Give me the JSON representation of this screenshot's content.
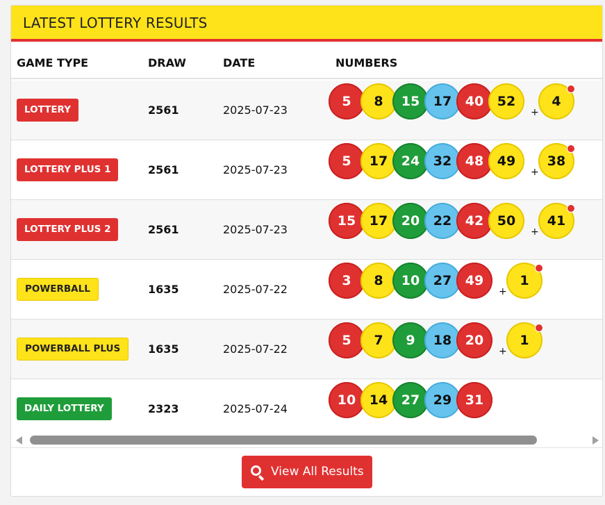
{
  "header": {
    "title": "LATEST LOTTERY RESULTS"
  },
  "columns": {
    "game": "GAME TYPE",
    "draw": "DRAW",
    "date": "DATE",
    "numbers": "NUMBERS"
  },
  "colors": {
    "red": "#e03131",
    "yellow": "#ffe31a",
    "green": "#1f9d3a",
    "blue": "#66c3ee"
  },
  "results": [
    {
      "game": "LOTTERY",
      "badge_color": "red",
      "draw": "2561",
      "date": "2025-07-23",
      "numbers": [
        {
          "value": "5",
          "color": "red"
        },
        {
          "value": "8",
          "color": "yellow"
        },
        {
          "value": "15",
          "color": "green"
        },
        {
          "value": "17",
          "color": "blue"
        },
        {
          "value": "40",
          "color": "red"
        },
        {
          "value": "52",
          "color": "yellow"
        }
      ],
      "bonus": {
        "value": "4",
        "color": "yellow"
      }
    },
    {
      "game": "LOTTERY PLUS 1",
      "badge_color": "red",
      "draw": "2561",
      "date": "2025-07-23",
      "numbers": [
        {
          "value": "5",
          "color": "red"
        },
        {
          "value": "17",
          "color": "yellow"
        },
        {
          "value": "24",
          "color": "green"
        },
        {
          "value": "32",
          "color": "blue"
        },
        {
          "value": "48",
          "color": "red"
        },
        {
          "value": "49",
          "color": "yellow"
        }
      ],
      "bonus": {
        "value": "38",
        "color": "yellow"
      }
    },
    {
      "game": "LOTTERY PLUS 2",
      "badge_color": "red",
      "draw": "2561",
      "date": "2025-07-23",
      "numbers": [
        {
          "value": "15",
          "color": "red"
        },
        {
          "value": "17",
          "color": "yellow"
        },
        {
          "value": "20",
          "color": "green"
        },
        {
          "value": "22",
          "color": "blue"
        },
        {
          "value": "42",
          "color": "red"
        },
        {
          "value": "50",
          "color": "yellow"
        }
      ],
      "bonus": {
        "value": "41",
        "color": "yellow"
      }
    },
    {
      "game": "POWERBALL",
      "badge_color": "yellow",
      "draw": "1635",
      "date": "2025-07-22",
      "numbers": [
        {
          "value": "3",
          "color": "red"
        },
        {
          "value": "8",
          "color": "yellow"
        },
        {
          "value": "10",
          "color": "green"
        },
        {
          "value": "27",
          "color": "blue"
        },
        {
          "value": "49",
          "color": "red"
        }
      ],
      "bonus": {
        "value": "1",
        "color": "yellow"
      }
    },
    {
      "game": "POWERBALL PLUS",
      "badge_color": "yellow",
      "draw": "1635",
      "date": "2025-07-22",
      "numbers": [
        {
          "value": "5",
          "color": "red"
        },
        {
          "value": "7",
          "color": "yellow"
        },
        {
          "value": "9",
          "color": "green"
        },
        {
          "value": "18",
          "color": "blue"
        },
        {
          "value": "20",
          "color": "red"
        }
      ],
      "bonus": {
        "value": "1",
        "color": "yellow"
      }
    },
    {
      "game": "DAILY LOTTERY",
      "badge_color": "green",
      "draw": "2323",
      "date": "2025-07-24",
      "numbers": [
        {
          "value": "10",
          "color": "red"
        },
        {
          "value": "14",
          "color": "yellow"
        },
        {
          "value": "27",
          "color": "green"
        },
        {
          "value": "29",
          "color": "blue"
        },
        {
          "value": "31",
          "color": "red"
        }
      ],
      "bonus": null
    }
  ],
  "footer": {
    "button_label": "View All Results",
    "button_icon": "search-icon"
  }
}
